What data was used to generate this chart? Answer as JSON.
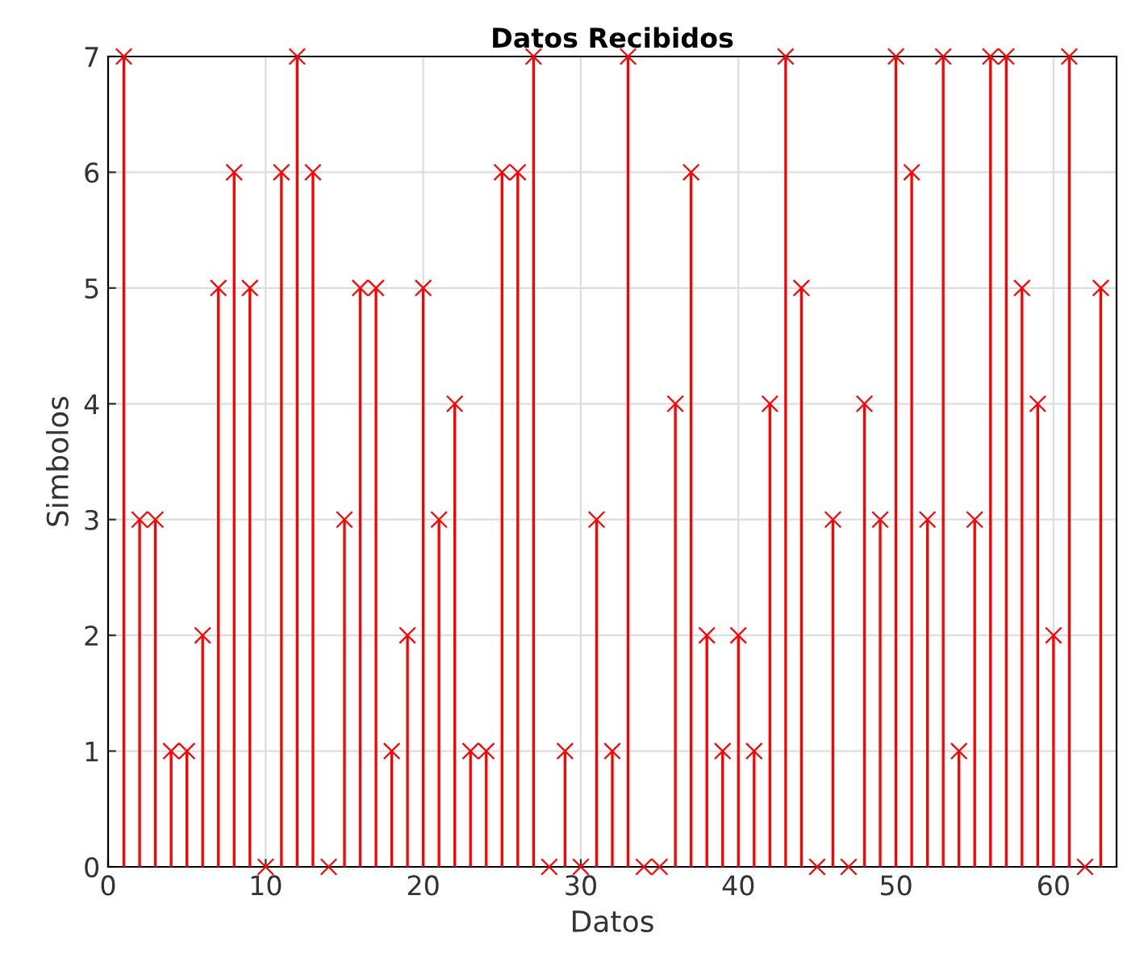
{
  "chart_data": {
    "type": "lollipop",
    "title": "Datos Recibidos",
    "xlabel": "Datos",
    "ylabel": "Simbolos",
    "x": [
      1,
      2,
      3,
      4,
      5,
      6,
      7,
      8,
      9,
      10,
      11,
      12,
      13,
      14,
      15,
      16,
      17,
      18,
      19,
      20,
      21,
      22,
      23,
      24,
      25,
      26,
      27,
      28,
      29,
      30,
      31,
      32,
      33,
      34,
      35,
      36,
      37,
      38,
      39,
      40,
      41,
      42,
      43,
      44,
      45,
      46,
      47,
      48,
      49,
      50,
      51,
      52,
      53,
      54,
      55,
      56,
      57,
      58,
      59,
      60,
      61,
      62,
      63
    ],
    "values": [
      7,
      3,
      3,
      1,
      1,
      2,
      5,
      6,
      5,
      0,
      6,
      7,
      6,
      0,
      3,
      5,
      5,
      1,
      2,
      5,
      3,
      4,
      1,
      1,
      6,
      6,
      7,
      0,
      1,
      0,
      3,
      1,
      7,
      0,
      0,
      4,
      6,
      2,
      1,
      2,
      1,
      4,
      7,
      5,
      0,
      3,
      0,
      4,
      3,
      7,
      6,
      3,
      7,
      1,
      3,
      7,
      7,
      5,
      4,
      2,
      7,
      0,
      5
    ],
    "color": "#ff0000",
    "marker": "cross",
    "grid": true,
    "xlim": [
      0,
      64
    ],
    "xticks": [
      0,
      10,
      20,
      30,
      40,
      50,
      60
    ],
    "ylim": [
      0,
      7
    ],
    "yticks": [
      0,
      1,
      2,
      3,
      4,
      5,
      6,
      7
    ]
  }
}
